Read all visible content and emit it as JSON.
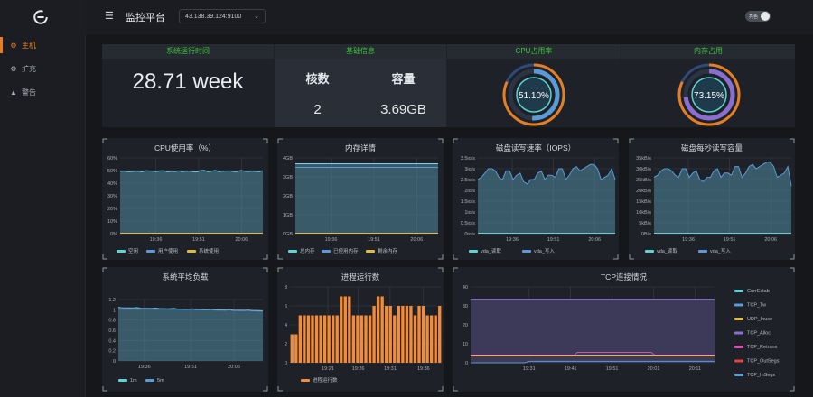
{
  "sidebar": {
    "logo": "e-logo-icon",
    "items": [
      {
        "label": "主机",
        "icon": "gear-icon",
        "active": true
      },
      {
        "label": "扩充",
        "icon": "gear-icon",
        "active": false
      },
      {
        "label": "警告",
        "icon": "warning-icon",
        "active": false
      }
    ]
  },
  "header": {
    "title": "监控平台",
    "server_value": "43.138.39.124:9100",
    "theme_toggle_label": "亮色"
  },
  "stats": {
    "uptime_header": "系统运行时间",
    "uptime_value": "28.71  week",
    "basic_header": "基础信息",
    "cores_label": "核数",
    "capacity_label": "容量",
    "cores_value": "2",
    "capacity_value": "3.69GB",
    "cpu_header": "CPU占用率",
    "cpu_value": "51.10%",
    "cpu_fraction": 0.511,
    "mem_header": "内存占用",
    "mem_value": "73.15%",
    "mem_fraction": 0.7315
  },
  "colors": {
    "accent": "#e67e22",
    "green_header": "#3ec53e",
    "cyan": "#5fd3d1",
    "blue": "#5b9bd5",
    "orange": "#f28c38",
    "purple": "#8a6fd0"
  },
  "charts": {
    "cpu": {
      "title": "CPU使用率（%）",
      "yticks": [
        "60%",
        "50%",
        "40%",
        "30%",
        "20%",
        "10%",
        "0%"
      ],
      "xticks": [
        "19:36",
        "19:51",
        "20:06"
      ],
      "legend": [
        "空闲",
        "用户使用",
        "系统使用"
      ]
    },
    "mem": {
      "title": "内存详情",
      "yticks": [
        "4GB",
        "3GB",
        "2GB",
        "1GB",
        "0GB"
      ],
      "xticks": [
        "19:36",
        "19:51",
        "20:06"
      ],
      "legend": [
        "总内存",
        "已使用内存",
        "剩余内存"
      ]
    },
    "iops": {
      "title": "磁盘读写速率（IOPS）",
      "yticks": [
        "3.5io/s",
        "3io/s",
        "2.5io/s",
        "2io/s",
        "1.5io/s",
        "1io/s",
        "0.5io/s",
        "0io/s"
      ],
      "xticks": [
        "19:36",
        "19:51",
        "20:06"
      ],
      "legend": [
        "vda_读取",
        "vda_写入"
      ]
    },
    "disk_bytes": {
      "title": "磁盘每秒读写容量",
      "yticks": [
        "35kB/s",
        "30kB/s",
        "25kB/s",
        "20kB/s",
        "15kB/s",
        "10kB/s",
        "5kB/s",
        "0B/s"
      ],
      "xticks": [
        "19:36",
        "19:51",
        "20:06"
      ],
      "legend": [
        "vda_读取",
        "vda_写入"
      ]
    },
    "load": {
      "title": "系统平均负载",
      "yticks": [
        "1.2",
        "1",
        "0.8",
        "0.6",
        "0.4",
        "0.2",
        "0"
      ],
      "xticks": [
        "19:36",
        "19:51",
        "20:06"
      ],
      "legend": [
        "1m",
        "5m"
      ]
    },
    "procs": {
      "title": "进程运行数",
      "yticks": [
        "8",
        "6",
        "4",
        "2",
        "0"
      ],
      "xticks": [
        "19:21",
        "19:26",
        "19:31",
        "19:36"
      ],
      "legend": [
        "进程运行数"
      ],
      "values": [
        3,
        3,
        5,
        5,
        5,
        5,
        5,
        5,
        5,
        5,
        5,
        5,
        7,
        7,
        7,
        5,
        5,
        5,
        5,
        5,
        6,
        7,
        7,
        6,
        6,
        5,
        6,
        6,
        6,
        6,
        5,
        6,
        6,
        5,
        5,
        5,
        6
      ]
    },
    "tcp": {
      "title": "TCP连接情况",
      "yticks": [
        "40",
        "30",
        "20",
        "10",
        "0"
      ],
      "xticks": [
        "19:31",
        "19:41",
        "19:51",
        "20:01",
        "20:11"
      ],
      "legend": [
        "CurrEstab",
        "TCP_Tw",
        "UDP_Inuse",
        "TCP_Alloc",
        "TCP_Retrans",
        "TCP_OutSegs",
        "TCP_InSegs"
      ]
    }
  }
}
